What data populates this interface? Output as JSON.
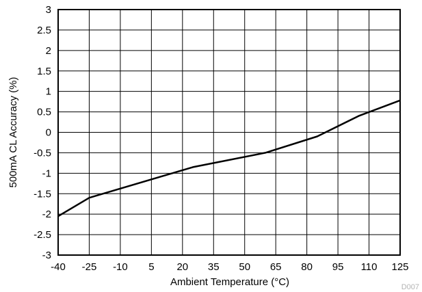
{
  "chart_data": {
    "type": "line",
    "xlabel": "Ambient Temperature (°C)",
    "ylabel": "500mA CL Accuracy (%)",
    "xlim": [
      -40,
      125
    ],
    "ylim": [
      -3,
      3
    ],
    "x_ticks": [
      "-40",
      "-25",
      "-10",
      "5",
      "20",
      "35",
      "50",
      "65",
      "80",
      "95",
      "110",
      "125"
    ],
    "y_ticks": [
      "3",
      "2.5",
      "2",
      "1.5",
      "1",
      "0.5",
      "0",
      "-0.5",
      "-1",
      "-1.5",
      "-2",
      "-2.5",
      "-3"
    ],
    "grid": true,
    "series": [
      {
        "x": [
          -40,
          -25,
          25,
          60,
          85,
          105,
          125
        ],
        "y": [
          -2.05,
          -1.6,
          -0.85,
          -0.5,
          -0.1,
          0.4,
          0.78
        ]
      }
    ],
    "line_color": "#000000",
    "figure_id": "D007"
  }
}
